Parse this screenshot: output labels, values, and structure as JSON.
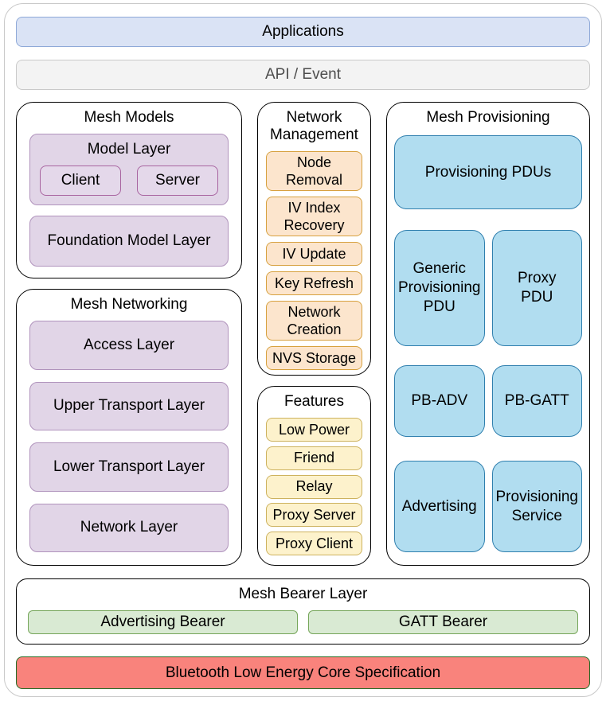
{
  "palette": {
    "blue_bar_fill": "#dae3f5",
    "blue_bar_border": "#8ea9d8",
    "gray_bar_fill": "#f3f3f3",
    "gray_bar_border": "#c9c9c9",
    "gray_text": "#4d4d4d",
    "purple_fill": "#e1d5e7",
    "purple_border": "#b093bc",
    "client_server_border": "#a864a0",
    "orange_fill": "#fce5cd",
    "orange_border": "#d7a13f",
    "yellow_fill": "#fdf2cc",
    "yellow_border": "#cdb25e",
    "cyan_fill": "#b1ddf0",
    "cyan_border": "#2f7fae",
    "green_fill": "#d9ead3",
    "green_border": "#76a65a",
    "red_fill": "#f9837c",
    "red_border": "#246b24",
    "section_border": "#000000",
    "outer_border": "#c9c9c9"
  },
  "app_bar": {
    "label": "Applications"
  },
  "api_bar": {
    "label": "API / Event"
  },
  "mesh_models": {
    "title": "Mesh Models",
    "model_layer": {
      "title": "Model Layer",
      "client": "Client",
      "server": "Server"
    },
    "foundation": "Foundation Model Layer"
  },
  "mesh_networking": {
    "title": "Mesh Networking",
    "layers": [
      "Access Layer",
      "Upper Transport Layer",
      "Lower Transport Layer",
      "Network Layer"
    ]
  },
  "network_management": {
    "title": "Network\nManagement",
    "items": [
      "Node\nRemoval",
      "IV Index\nRecovery",
      "IV Update",
      "Key Refresh",
      "Network\nCreation",
      "NVS Storage"
    ]
  },
  "features": {
    "title": "Features",
    "items": [
      "Low Power",
      "Friend",
      "Relay",
      "Proxy Server",
      "Proxy Client"
    ]
  },
  "mesh_provisioning": {
    "title": "Mesh Provisioning",
    "pdus": "Provisioning PDUs",
    "grid": [
      "Generic\nProvisioning\nPDU",
      "Proxy\nPDU",
      "PB-ADV",
      "PB-GATT",
      "Advertising",
      "Provisioning\nService"
    ]
  },
  "mesh_bearer": {
    "title": "Mesh Bearer Layer",
    "advertising": "Advertising Bearer",
    "gatt": "GATT Bearer"
  },
  "ble_core": {
    "label": "Bluetooth Low Energy Core Specification"
  }
}
